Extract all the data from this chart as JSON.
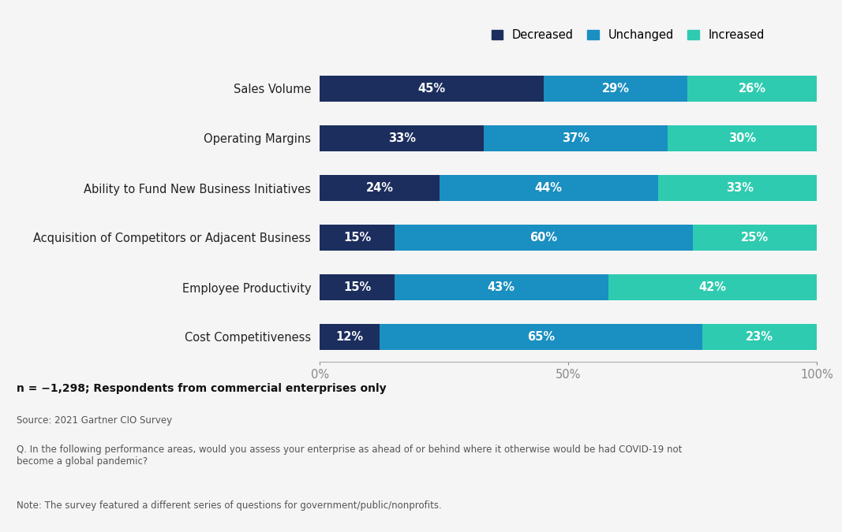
{
  "categories": [
    "Sales Volume",
    "Operating Margins",
    "Ability to Fund New Business Initiatives",
    "Acquisition of Competitors or Adjacent Business",
    "Employee Productivity",
    "Cost Competitiveness"
  ],
  "decreased": [
    45,
    33,
    24,
    15,
    15,
    12
  ],
  "unchanged": [
    29,
    37,
    44,
    60,
    43,
    65
  ],
  "increased": [
    26,
    30,
    33,
    25,
    42,
    23
  ],
  "colors": {
    "decreased": "#1c2e5e",
    "unchanged": "#1a8fc1",
    "increased": "#2ecbb0"
  },
  "legend_labels": [
    "Decreased",
    "Unchanged",
    "Increased"
  ],
  "bar_height": 0.52,
  "background_color": "#f5f5f5",
  "note_bold": "n = −1,298; Respondents from commercial enterprises only",
  "note_source": "Source: 2021 Gartner CIO Survey",
  "note_q": "Q. In the following performance areas, would you assess your enterprise as ahead of or behind where it otherwise would be had COVID-19 not\nbecome a global pandemic?",
  "note_footnote": "Note: The survey featured a different series of questions for government/public/nonprofits."
}
